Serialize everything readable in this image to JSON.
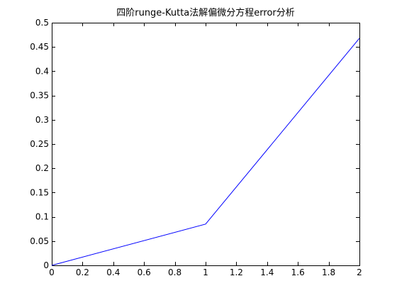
{
  "chart_data": {
    "type": "line",
    "title": "四阶runge-Kutta法解偏微分方程error分析",
    "xlabel": "",
    "ylabel": "",
    "xlim": [
      0,
      2
    ],
    "ylim": [
      0,
      0.5
    ],
    "x_ticks": [
      0,
      0.2,
      0.4,
      0.6,
      0.8,
      1,
      1.2,
      1.4,
      1.6,
      1.8,
      2
    ],
    "x_tick_labels": [
      "0",
      "0.2",
      "0.4",
      "0.6",
      "0.8",
      "1",
      "1.2",
      "1.4",
      "1.6",
      "1.8",
      "2"
    ],
    "y_ticks": [
      0,
      0.05,
      0.1,
      0.15,
      0.2,
      0.25,
      0.3,
      0.35,
      0.4,
      0.45,
      0.5
    ],
    "y_tick_labels": [
      "0",
      "0.05",
      "0.1",
      "0.15",
      "0.2",
      "0.25",
      "0.3",
      "0.35",
      "0.4",
      "0.45",
      "0.5"
    ],
    "grid": false,
    "legend": "none",
    "series": [
      {
        "x": [
          0,
          1,
          2
        ],
        "y": [
          0,
          0.085,
          0.468
        ],
        "color": "#0000ff"
      }
    ]
  }
}
